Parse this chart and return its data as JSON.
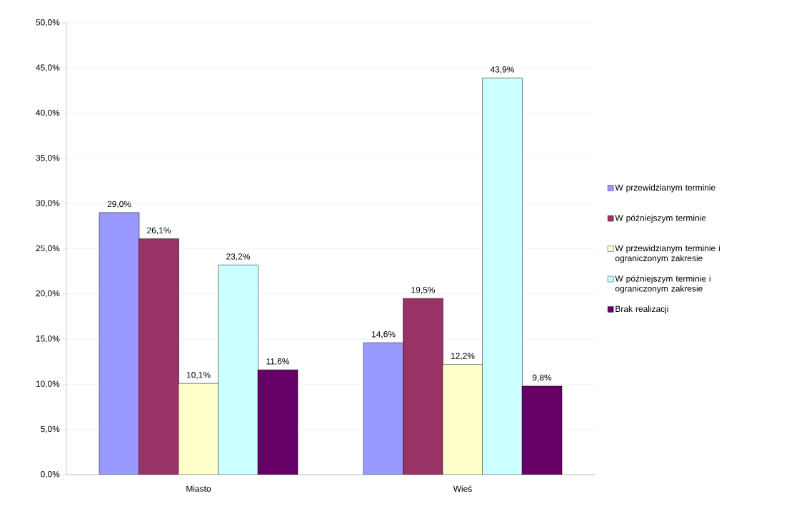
{
  "chart_data": {
    "type": "bar",
    "categories": [
      "Miasto",
      "Wieś"
    ],
    "series": [
      {
        "name": "W przewidzianym terminie",
        "color": "#9999ff",
        "values": [
          29.0,
          14.6
        ],
        "value_labels": [
          "29,0%",
          "14,6%"
        ]
      },
      {
        "name": "W późniejszym terminie",
        "color": "#993366",
        "values": [
          26.1,
          19.5
        ],
        "value_labels": [
          "26,1%",
          "19,5%"
        ]
      },
      {
        "name": "W przewidzianym terminie i ograniczonym zakresie",
        "color": "#ffffcc",
        "values": [
          10.1,
          12.2
        ],
        "value_labels": [
          "10,1%",
          "12,2%"
        ]
      },
      {
        "name": "W późniejszym terminie i ograniczonym zakresie",
        "color": "#ccffff",
        "values": [
          23.2,
          43.9
        ],
        "value_labels": [
          "23,2%",
          "43,9%"
        ]
      },
      {
        "name": "Brak realizacji",
        "color": "#660066",
        "values": [
          11.6,
          9.8
        ],
        "value_labels": [
          "11,6%",
          "9,8%"
        ]
      }
    ],
    "ylim": [
      0,
      50
    ],
    "yticks": [
      {
        "value": 0,
        "label": "0,0%"
      },
      {
        "value": 5,
        "label": "5,0%"
      },
      {
        "value": 10,
        "label": "10,0%"
      },
      {
        "value": 15,
        "label": "15,0%"
      },
      {
        "value": 20,
        "label": "20,0%"
      },
      {
        "value": 25,
        "label": "25,0%"
      },
      {
        "value": 30,
        "label": "30,0%"
      },
      {
        "value": 35,
        "label": "35,0%"
      },
      {
        "value": 40,
        "label": "40,0%"
      },
      {
        "value": 45,
        "label": "45,0%"
      },
      {
        "value": 50,
        "label": "50,0%"
      }
    ],
    "grid": "y",
    "legend": "right"
  }
}
